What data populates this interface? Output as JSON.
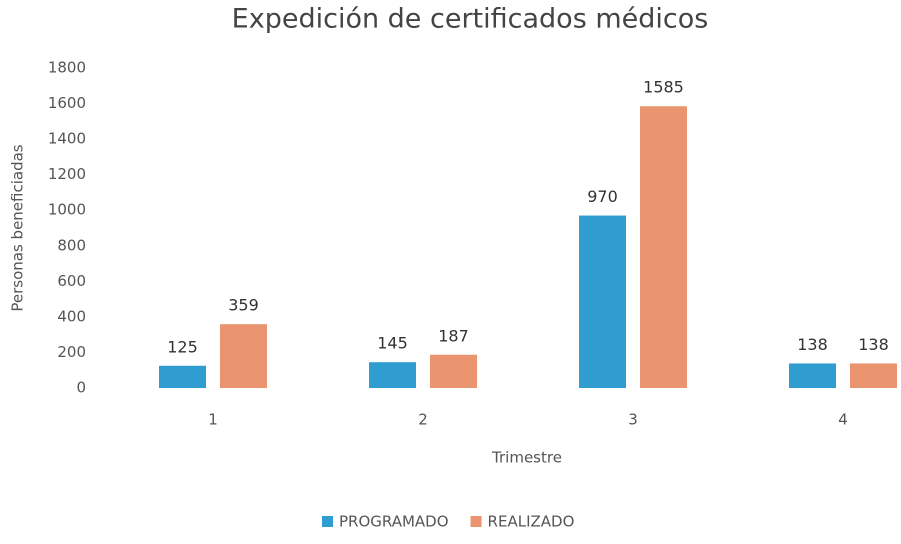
{
  "chart_data": {
    "type": "bar",
    "title": "Expedición de certificados médicos",
    "x_label": "Trimestre",
    "y_label": "Personas beneficiadas",
    "categories": [
      "1",
      "2",
      "3",
      "4"
    ],
    "series": [
      {
        "name": "PROGRAMADO",
        "color": "#2f9dd0",
        "values": [
          125,
          145,
          970,
          138
        ]
      },
      {
        "name": "REALIZADO",
        "color": "#ea9470",
        "values": [
          359,
          187,
          1585,
          138
        ]
      }
    ],
    "ylim": [
      0,
      1800
    ],
    "yticks": [
      0,
      200,
      400,
      600,
      800,
      1000,
      1200,
      1400,
      1600,
      1800
    ],
    "grid": false,
    "legend": "bottom"
  }
}
